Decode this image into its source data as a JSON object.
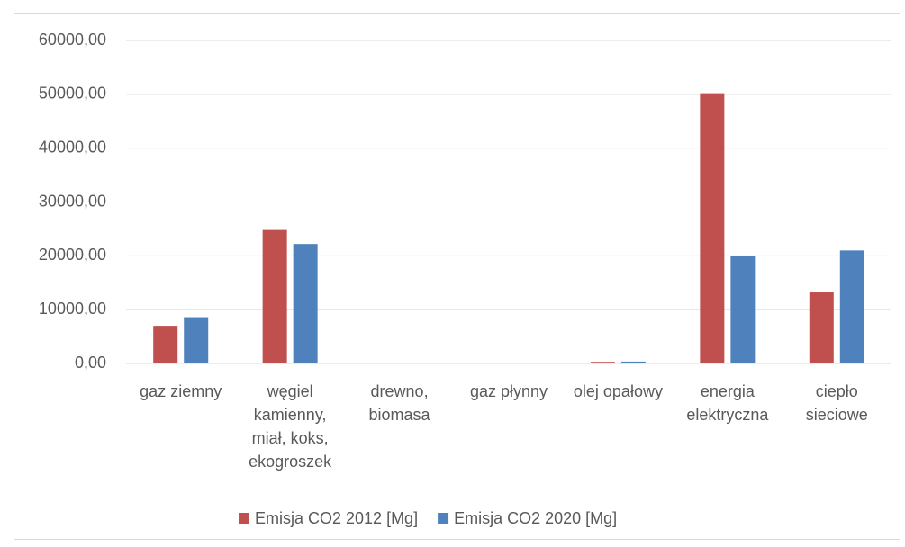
{
  "chart_data": {
    "type": "bar",
    "categories": [
      "gaz ziemny",
      "węgiel kamienny, miał, koks, ekogroszek",
      "drewno, biomasa",
      "gaz płynny",
      "olej opałowy",
      "energia elektryczna",
      "ciepło sieciowe"
    ],
    "series": [
      {
        "name": "Emisja CO2 2012 [Mg]",
        "color": "#c0504d",
        "values": [
          7000,
          24800,
          0,
          50,
          300,
          50200,
          13200
        ]
      },
      {
        "name": "Emisja CO2 2020 [Mg]",
        "color": "#4f81bd",
        "values": [
          8600,
          22200,
          0,
          100,
          350,
          20000,
          21000
        ]
      }
    ],
    "ylim": [
      0,
      60000
    ],
    "yticks": [
      {
        "value": 0,
        "label": "0,00"
      },
      {
        "value": 10000,
        "label": "10000,00"
      },
      {
        "value": 20000,
        "label": "20000,00"
      },
      {
        "value": 30000,
        "label": "30000,00"
      },
      {
        "value": 40000,
        "label": "40000,00"
      },
      {
        "value": 50000,
        "label": "50000,00"
      },
      {
        "value": 60000,
        "label": "60000,00"
      }
    ],
    "grid": true,
    "legend": "bottom"
  }
}
